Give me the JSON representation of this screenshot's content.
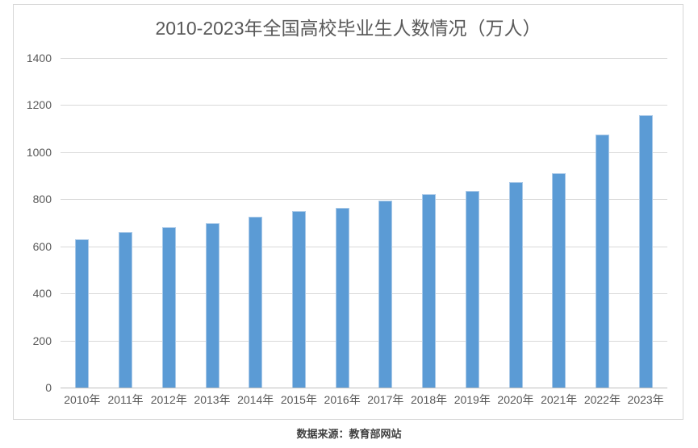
{
  "chart_data": {
    "type": "bar",
    "title": "2010-2023年全国高校毕业生人数情况（万人）",
    "categories": [
      "2010年",
      "2011年",
      "2012年",
      "2013年",
      "2014年",
      "2015年",
      "2016年",
      "2017年",
      "2018年",
      "2019年",
      "2020年",
      "2021年",
      "2022年",
      "2023年"
    ],
    "values": [
      631,
      660,
      680,
      699,
      727,
      749,
      765,
      795,
      820,
      834,
      874,
      909,
      1076,
      1158
    ],
    "xlabel": "",
    "ylabel": "",
    "ylim": [
      0,
      1400
    ],
    "yticks": [
      0,
      200,
      400,
      600,
      800,
      1000,
      1200,
      1400
    ],
    "grid": true,
    "legend": false,
    "colors": {
      "bar": "#5B9BD5",
      "bar_border": "#A9C9E8",
      "gridline": "#D9D9D9",
      "axis_line": "#BFBFBF",
      "text": "#595959",
      "title": "#595959",
      "source_text": "#404040",
      "card_border": "#D7D7D7"
    }
  },
  "footer": {
    "source_label": "数据来源：教育部网站"
  }
}
